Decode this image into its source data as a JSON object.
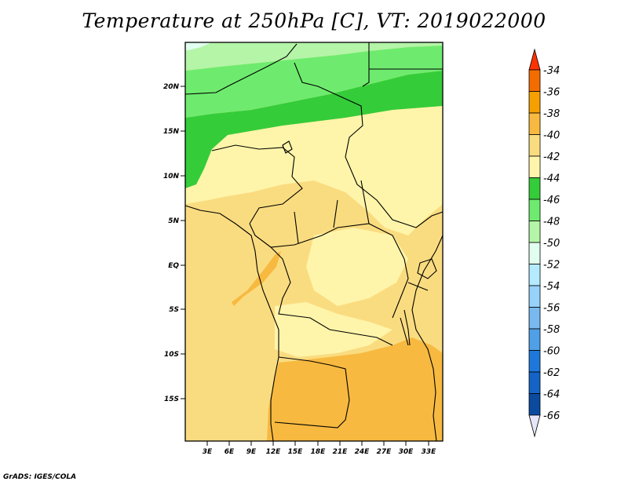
{
  "title": "Temperature at 250hPa [C], VT: 2019022000",
  "credit": "GrADS: IGES/COLA",
  "map": {
    "lat_range": [
      -20,
      25
    ],
    "lon_range": [
      0,
      35
    ],
    "lat_ticks": [
      "20N",
      "15N",
      "10N",
      "5N",
      "EQ",
      "5S",
      "10S",
      "15S"
    ],
    "lon_ticks": [
      "3E",
      "6E",
      "9E",
      "12E",
      "15E",
      "18E",
      "21E",
      "24E",
      "27E",
      "30E",
      "33E"
    ]
  },
  "colorbar": {
    "labels": [
      "-34",
      "-36",
      "-38",
      "-40",
      "-42",
      "-44",
      "-46",
      "-48",
      "-50",
      "-52",
      "-54",
      "-56",
      "-58",
      "-60",
      "-62",
      "-64",
      "-66"
    ],
    "colors": [
      "#ff3300",
      "#f36c00",
      "#f5a000",
      "#f7b940",
      "#fadc80",
      "#fff5aa",
      "#35cc3a",
      "#6eeb6e",
      "#b4f5a8",
      "#e1fff0",
      "#b4ebff",
      "#96d2fa",
      "#78b9f0",
      "#4fa0e6",
      "#1e78dc",
      "#1464c8",
      "#0a4ba0",
      "#141e78",
      "#e6e6fa"
    ]
  }
}
